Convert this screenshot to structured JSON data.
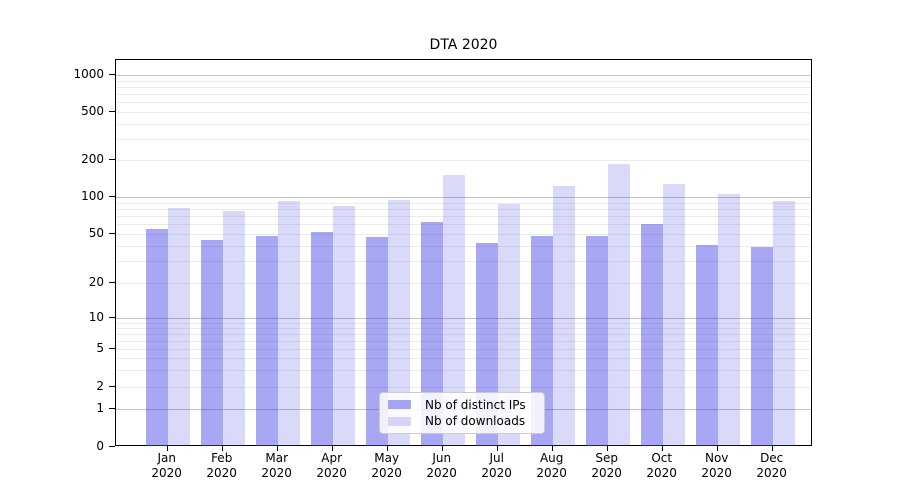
{
  "chart_data": {
    "type": "bar",
    "title": "DTA 2020",
    "xlabel": "",
    "ylabel": "",
    "y_scale": "symlog",
    "y_ticks": [
      0,
      1,
      2,
      5,
      10,
      20,
      50,
      100,
      200,
      500,
      1000
    ],
    "y_major_gridlines": [
      1,
      10,
      100,
      1000
    ],
    "y_minor_gridlines": [
      2,
      3,
      4,
      5,
      6,
      7,
      8,
      9,
      20,
      30,
      40,
      50,
      60,
      70,
      80,
      90,
      200,
      300,
      400,
      500,
      600,
      700,
      800,
      900
    ],
    "ylim": [
      0,
      1300
    ],
    "grid": "horizontal major+minor",
    "legend_position": "lower center, inside axes",
    "categories": [
      {
        "month": "Jan",
        "year": "2020"
      },
      {
        "month": "Feb",
        "year": "2020"
      },
      {
        "month": "Mar",
        "year": "2020"
      },
      {
        "month": "Apr",
        "year": "2020"
      },
      {
        "month": "May",
        "year": "2020"
      },
      {
        "month": "Jun",
        "year": "2020"
      },
      {
        "month": "Jul",
        "year": "2020"
      },
      {
        "month": "Aug",
        "year": "2020"
      },
      {
        "month": "Sep",
        "year": "2020"
      },
      {
        "month": "Oct",
        "year": "2020"
      },
      {
        "month": "Nov",
        "year": "2020"
      },
      {
        "month": "Dec",
        "year": "2020"
      }
    ],
    "series": [
      {
        "name": "Nb of distinct IPs",
        "color": "rgba(64,64,230,0.46)",
        "values": [
          55,
          45,
          48,
          52,
          47,
          63,
          42,
          48,
          48,
          60,
          41,
          39
        ]
      },
      {
        "name": "Nb of downloads",
        "color": "rgba(64,64,230,0.20)",
        "values": [
          82,
          77,
          93,
          85,
          94,
          152,
          88,
          123,
          185,
          128,
          106,
          93
        ]
      }
    ],
    "colors": {
      "background": "#ffffff",
      "axis_spine": "#000000",
      "grid_major": "#c3c3c3",
      "grid_minor": "#ebebeb",
      "legend_border": "#cccccc"
    }
  }
}
